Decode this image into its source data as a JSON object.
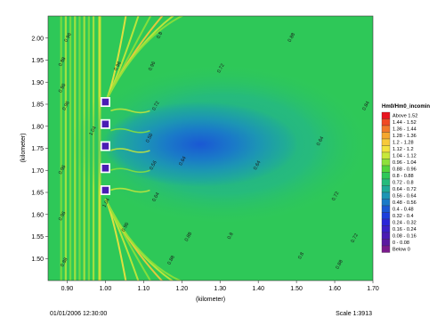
{
  "chart_data": {
    "type": "heatmap",
    "xlabel": "(kilometer)",
    "ylabel": "(kilometer)",
    "xlim": [
      0.85,
      1.7
    ],
    "ylim": [
      1.45,
      2.05
    ],
    "xticks": [
      "0.90",
      "1.00",
      "1.10",
      "1.20",
      "1.30",
      "1.40",
      "1.50",
      "1.60",
      "1.70"
    ],
    "xtick_values": [
      0.9,
      1.0,
      1.1,
      1.2,
      1.3,
      1.4,
      1.5,
      1.6,
      1.7
    ],
    "yticks": [
      "2.00",
      "1.95",
      "1.90",
      "1.85",
      "1.80",
      "1.75",
      "1.70",
      "1.65",
      "1.60",
      "1.55",
      "1.50"
    ],
    "ytick_values": [
      2.0,
      1.95,
      1.9,
      1.85,
      1.8,
      1.75,
      1.7,
      1.65,
      1.6,
      1.55,
      1.5
    ],
    "legend": {
      "title": "Hm0/Hm0_incomin",
      "placement": "right",
      "entries": [
        {
          "label": "Above 1.52",
          "color": "#e8141e"
        },
        {
          "label": "1.44 - 1.52",
          "color": "#f04a24"
        },
        {
          "label": "1.36 - 1.44",
          "color": "#f27a2a"
        },
        {
          "label": "1.28 - 1.36",
          "color": "#f5a72e"
        },
        {
          "label": "1.2 - 1.28",
          "color": "#f7c93a"
        },
        {
          "label": "1.12 - 1.2",
          "color": "#f2e23e"
        },
        {
          "label": "1.04 - 1.12",
          "color": "#c8e83a"
        },
        {
          "label": "0.96 - 1.04",
          "color": "#8ee03a"
        },
        {
          "label": "0.88 - 0.96",
          "color": "#52d43c"
        },
        {
          "label": "0.8 - 0.88",
          "color": "#2ec858"
        },
        {
          "label": "0.72 - 0.8",
          "color": "#26bb7c"
        },
        {
          "label": "0.64 - 0.72",
          "color": "#20aa98"
        },
        {
          "label": "0.56 - 0.64",
          "color": "#1c95b4"
        },
        {
          "label": "0.48 - 0.56",
          "color": "#1a7ac8"
        },
        {
          "label": "0.4 - 0.48",
          "color": "#1a58d4"
        },
        {
          "label": "0.32 - 0.4",
          "color": "#1c3edc"
        },
        {
          "label": "0.24 - 0.32",
          "color": "#2a26d8"
        },
        {
          "label": "0.16 - 0.24",
          "color": "#3a20c8"
        },
        {
          "label": "0.08 - 0.16",
          "color": "#4a1cb4"
        },
        {
          "label": "0 - 0.08",
          "color": "#5a1aa0"
        },
        {
          "label": "Below 0",
          "color": "#7a1a8c"
        }
      ]
    },
    "contour_labels": [
      {
        "text": "0.96",
        "x": 0.905,
        "y": 2.0
      },
      {
        "text": "0.96",
        "x": 1.035,
        "y": 1.935
      },
      {
        "text": "0.96",
        "x": 1.125,
        "y": 1.935
      },
      {
        "text": "0.8",
        "x": 1.145,
        "y": 2.005
      },
      {
        "text": "0.88",
        "x": 1.49,
        "y": 2.0
      },
      {
        "text": "0.72",
        "x": 1.305,
        "y": 1.93
      },
      {
        "text": "0.96",
        "x": 0.89,
        "y": 1.885
      },
      {
        "text": "0.88",
        "x": 0.89,
        "y": 1.945
      },
      {
        "text": "0.96",
        "x": 0.9,
        "y": 1.845
      },
      {
        "text": "1.04",
        "x": 0.97,
        "y": 1.788
      },
      {
        "text": "0.96",
        "x": 0.89,
        "y": 1.7
      },
      {
        "text": "0.96",
        "x": 0.89,
        "y": 1.595
      },
      {
        "text": "0.88",
        "x": 0.895,
        "y": 1.49
      },
      {
        "text": "0.72",
        "x": 1.135,
        "y": 1.845
      },
      {
        "text": "0.56",
        "x": 1.118,
        "y": 1.772
      },
      {
        "text": "0.56",
        "x": 1.128,
        "y": 1.71
      },
      {
        "text": "0.64",
        "x": 1.135,
        "y": 1.638
      },
      {
        "text": "0.64",
        "x": 1.205,
        "y": 1.72
      },
      {
        "text": "0.64",
        "x": 1.4,
        "y": 1.71
      },
      {
        "text": "0.64",
        "x": 1.565,
        "y": 1.765
      },
      {
        "text": "0.84",
        "x": 1.685,
        "y": 1.845
      },
      {
        "text": "0.72",
        "x": 1.605,
        "y": 1.64
      },
      {
        "text": "1.04",
        "x": 1.005,
        "y": 1.625
      },
      {
        "text": "0.96",
        "x": 1.055,
        "y": 1.57
      },
      {
        "text": "0.88",
        "x": 1.22,
        "y": 1.548
      },
      {
        "text": "0.8",
        "x": 1.33,
        "y": 1.55
      },
      {
        "text": "0.8",
        "x": 1.515,
        "y": 1.505
      },
      {
        "text": "0.72",
        "x": 1.655,
        "y": 1.545
      },
      {
        "text": "0.88",
        "x": 1.175,
        "y": 1.495
      },
      {
        "text": "0.88",
        "x": 1.615,
        "y": 1.485
      }
    ],
    "grid": false
  },
  "footer": {
    "date": "01/01/2006 12:30:00",
    "scale": "Scale 1:3913"
  }
}
